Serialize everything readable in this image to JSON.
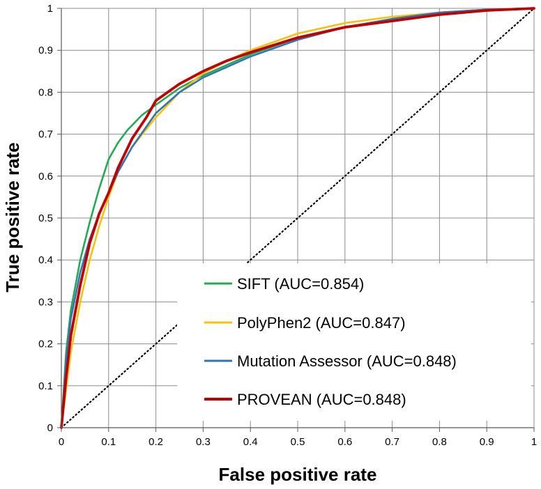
{
  "chart_data": {
    "type": "line",
    "title": "",
    "xlabel": "False positive rate",
    "ylabel": "True positive rate",
    "xlim": [
      0,
      1
    ],
    "ylim": [
      0,
      1
    ],
    "grid": true,
    "legend_position": "bottom-right",
    "x_ticks": [
      "0",
      "0.1",
      "0.2",
      "0.3",
      "0.4",
      "0.5",
      "0.6",
      "0.7",
      "0.8",
      "0.9",
      "1"
    ],
    "y_ticks": [
      "0",
      "0.1",
      "0.2",
      "0.3",
      "0.4",
      "0.5",
      "0.6",
      "0.7",
      "0.8",
      "0.9",
      "1"
    ],
    "diagonal": {
      "x": [
        0,
        1
      ],
      "y": [
        0,
        1
      ],
      "style": "dotted",
      "color": "#000000"
    },
    "series": [
      {
        "name": "SIFT",
        "legend_label": "SIFT (AUC=0.854)",
        "color": "#22AA55",
        "x": [
          0,
          0.01,
          0.02,
          0.04,
          0.06,
          0.08,
          0.1,
          0.12,
          0.14,
          0.17,
          0.2,
          0.25,
          0.3,
          0.35,
          0.4,
          0.5,
          0.6,
          0.7,
          0.8,
          0.9,
          1.0
        ],
        "y": [
          0,
          0.18,
          0.28,
          0.4,
          0.49,
          0.57,
          0.64,
          0.68,
          0.71,
          0.745,
          0.77,
          0.81,
          0.84,
          0.865,
          0.89,
          0.93,
          0.955,
          0.975,
          0.99,
          0.997,
          1.0
        ]
      },
      {
        "name": "PolyPhen2",
        "legend_label": "PolyPhen2 (AUC=0.847)",
        "color": "#F4C20D",
        "x": [
          0,
          0.01,
          0.02,
          0.04,
          0.06,
          0.08,
          0.1,
          0.12,
          0.15,
          0.2,
          0.25,
          0.3,
          0.35,
          0.4,
          0.5,
          0.6,
          0.7,
          0.8,
          0.9,
          1.0
        ],
        "y": [
          0,
          0.09,
          0.18,
          0.3,
          0.4,
          0.48,
          0.55,
          0.61,
          0.67,
          0.74,
          0.8,
          0.845,
          0.875,
          0.9,
          0.94,
          0.965,
          0.98,
          0.99,
          0.997,
          1.0
        ]
      },
      {
        "name": "Mutation Assessor",
        "legend_label": "Mutation Assessor (AUC=0.848)",
        "color": "#2E75B6",
        "x": [
          0,
          0.01,
          0.02,
          0.04,
          0.06,
          0.08,
          0.1,
          0.12,
          0.15,
          0.2,
          0.25,
          0.3,
          0.35,
          0.4,
          0.5,
          0.6,
          0.7,
          0.8,
          0.9,
          1.0
        ],
        "y": [
          0,
          0.16,
          0.26,
          0.37,
          0.45,
          0.51,
          0.56,
          0.61,
          0.67,
          0.75,
          0.8,
          0.835,
          0.86,
          0.885,
          0.925,
          0.955,
          0.975,
          0.99,
          0.997,
          1.0
        ]
      },
      {
        "name": "PROVEAN",
        "legend_label": "PROVEAN (AUC=0.848)",
        "color": "#C00000",
        "x": [
          0,
          0.01,
          0.02,
          0.04,
          0.06,
          0.08,
          0.1,
          0.12,
          0.15,
          0.18,
          0.2,
          0.25,
          0.3,
          0.35,
          0.4,
          0.5,
          0.6,
          0.7,
          0.8,
          0.9,
          1.0
        ],
        "y": [
          0,
          0.12,
          0.22,
          0.34,
          0.44,
          0.51,
          0.56,
          0.62,
          0.69,
          0.74,
          0.78,
          0.82,
          0.85,
          0.875,
          0.895,
          0.93,
          0.955,
          0.97,
          0.985,
          0.995,
          1.0
        ]
      }
    ]
  }
}
